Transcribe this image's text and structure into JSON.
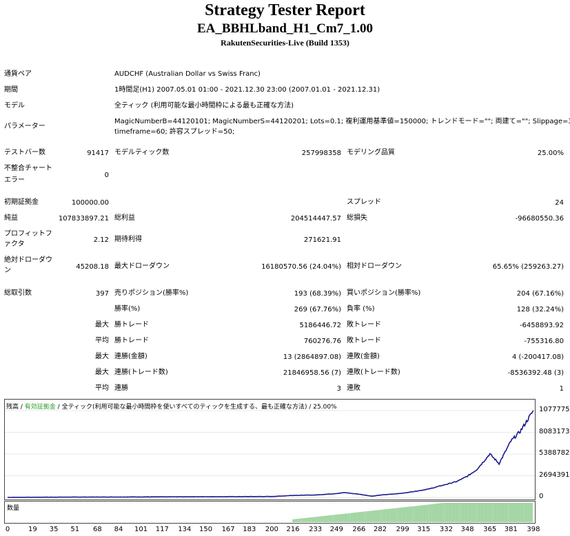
{
  "header": {
    "title": "Strategy Tester Report",
    "subtitle": "EA_BBHLband_H1_Cm7_1.00",
    "build": "RakutenSecurities-Live (Build 1353)"
  },
  "info": {
    "symbol_label": "通貨ペア",
    "symbol_value": "AUDCHF (Australian Dollar vs Swiss Franc)",
    "period_label": "期間",
    "period_value": "1時間足(H1) 2007.05.01 01:00 - 2021.12.30 23:00 (2007.01.01 - 2021.12.31)",
    "model_label": "モデル",
    "model_value": "全ティック (利用可能な最小時間枠による最も正確な方法)",
    "params_label": "パラメーター",
    "params_line1": "MagicNumberB=44120101; MagicNumberS=44120201; Lots=0.1; 複利運用基準値=150000; トレンドモード=\"\"; 両建て=\"\"; Slippage=3;",
    "params_line2": "timeframe=60; 許容スプレッド=50;"
  },
  "stats": {
    "bars_label": "テストバー数",
    "bars_value": "91417",
    "ticks_label": "モデルティック数",
    "ticks_value": "257998358",
    "quality_label": "モデリング品質",
    "quality_value": "25.00%",
    "mismatch_label1": "不整合チャート",
    "mismatch_label2": "エラー",
    "mismatch_value": "0",
    "deposit_label": "初期証拠金",
    "deposit_value": "100000.00",
    "spread_label": "スプレッド",
    "spread_value": "24",
    "net_label": "純益",
    "net_value": "107833897.21",
    "gross_profit_label": "総利益",
    "gross_profit_value": "204514447.57",
    "gross_loss_label": "総損失",
    "gross_loss_value": "-96680550.36",
    "pf_label1": "プロフィットフ",
    "pf_label2": "ァクタ",
    "pf_value": "2.12",
    "expected_label": "期待利得",
    "expected_value": "271621.91",
    "abs_dd_label1": "絶対ドローダウ",
    "abs_dd_label2": "ン",
    "abs_dd_value": "45208.18",
    "max_dd_label": "最大ドローダウン",
    "max_dd_value": "16180570.56 (24.04%)",
    "rel_dd_label": "相対ドローダウン",
    "rel_dd_value": "65.65% (259263.27)",
    "trades_label": "総取引数",
    "trades_value": "397",
    "short_label": "売りポジション(勝率%)",
    "short_value": "193 (68.39%)",
    "long_label": "買いポジション(勝率%)",
    "long_value": "204 (67.16%)",
    "win_label": "勝率(%)",
    "win_value": "269 (67.76%)",
    "loss_label": "負率 (%)",
    "loss_value": "128 (32.24%)",
    "largest_label": "最大",
    "largest_win_label": "勝トレード",
    "largest_win_value": "5186446.72",
    "largest_loss_label": "敗トレード",
    "largest_loss_value": "-6458893.92",
    "average_label": "平均",
    "avg_win_label": "勝トレード",
    "avg_win_value": "760276.76",
    "avg_loss_label": "敗トレード",
    "avg_loss_value": "-755316.80",
    "max_label": "最大",
    "cons_wins_money_label": "連勝(金額)",
    "cons_wins_money_value": "13 (2864897.08)",
    "cons_loss_money_label": "連敗(金額)",
    "cons_loss_money_value": "4 (-200417.08)",
    "max_label2": "最大",
    "cons_profit_label": "連勝(トレード数)",
    "cons_profit_value": "21846958.56 (7)",
    "cons_lossamt_label": "連敗(トレード数)",
    "cons_lossamt_value": "-8536392.48 (3)",
    "avg_label2": "平均",
    "avg_cons_wins_label": "連勝",
    "avg_cons_wins_value": "3",
    "avg_cons_loss_label": "連敗",
    "avg_cons_loss_value": "1"
  },
  "chart_data": {
    "type": "line",
    "legend": {
      "balance": "残高",
      "sep1": " / ",
      "equity": "有効証拠金",
      "sep2": " / ",
      "model_text": "全ティック(利用可能な最小時間枠を使いすべてのティックを生成する、最も正確な方法)",
      "sep3": " / ",
      "quality": "25.00%"
    },
    "y_ticks": [
      "107777564",
      "80831730",
      "53887820",
      "26943910",
      "0"
    ],
    "x_ticks": [
      "0",
      "19",
      "35",
      "51",
      "68",
      "84",
      "101",
      "117",
      "134",
      "150",
      "167",
      "183",
      "200",
      "216",
      "233",
      "249",
      "266",
      "282",
      "299",
      "315",
      "332",
      "348",
      "365",
      "381",
      "398"
    ],
    "ylim": [
      0,
      107777564
    ],
    "xlim": [
      0,
      397
    ],
    "balance": {
      "color": "#1a1a8c",
      "x": [
        0,
        50,
        100,
        150,
        200,
        216,
        233,
        249,
        255,
        266,
        276,
        282,
        299,
        315,
        320,
        332,
        340,
        348,
        355,
        362,
        365,
        372,
        381,
        388,
        398
      ],
      "y": [
        100000,
        400000,
        600000,
        900000,
        1100000,
        2500000,
        3000000,
        4800000,
        6000000,
        4000000,
        1500000,
        2900000,
        5200000,
        9300000,
        11000000,
        16200000,
        19800000,
        26300000,
        34400000,
        48000000,
        54000000,
        42000000,
        70000000,
        82000000,
        107833897
      ]
    },
    "volume_label": "数量",
    "volume_color": "#2a9d2a",
    "volume_start_trade": 216
  }
}
